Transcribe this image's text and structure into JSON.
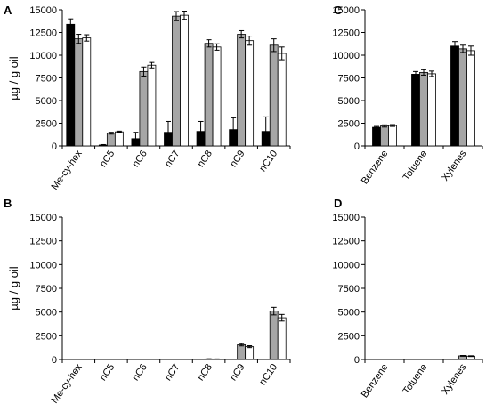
{
  "colors": {
    "black": "#000000",
    "gray": "#a6a6a6",
    "white": "#ffffff",
    "stroke": "#000000",
    "errorbar": "#000000",
    "axis": "#000000"
  },
  "chart_data": [
    {
      "panel": "A",
      "type": "bar",
      "ylabel": "µg / g oil",
      "ylim": [
        0,
        15000
      ],
      "yticks": [
        "0",
        "2500",
        "5000",
        "7500",
        "10000",
        "12500",
        "15000"
      ],
      "categories": [
        "Me-cy-hex",
        "nC5",
        "nC6",
        "nC7",
        "nC8",
        "nC9",
        "nC10"
      ],
      "series": [
        {
          "color": "black",
          "values": [
            13400,
            100,
            800,
            1500,
            1600,
            1800,
            1600
          ],
          "errors": [
            600,
            50,
            700,
            1200,
            1100,
            1300,
            1600
          ]
        },
        {
          "color": "gray",
          "values": [
            11800,
            1400,
            8200,
            14300,
            11300,
            12300,
            11100
          ],
          "errors": [
            500,
            100,
            500,
            500,
            400,
            400,
            700
          ]
        },
        {
          "color": "white",
          "values": [
            11900,
            1550,
            8900,
            14400,
            10900,
            11600,
            10200
          ],
          "errors": [
            350,
            80,
            300,
            450,
            350,
            500,
            700
          ]
        }
      ]
    },
    {
      "panel": "B",
      "type": "bar",
      "ylabel": "µg / g oil",
      "ylim": [
        0,
        15000
      ],
      "yticks": [
        "0",
        "2500",
        "5000",
        "7500",
        "10000",
        "12500",
        "15000"
      ],
      "categories": [
        "Me-cy-hex",
        "nC5",
        "nC6",
        "nC7",
        "nC8",
        "nC9",
        "nC10"
      ],
      "series": [
        {
          "color": "black",
          "values": [
            0,
            0,
            0,
            0,
            0,
            0,
            0
          ],
          "errors": [
            0,
            0,
            0,
            0,
            0,
            0,
            0
          ]
        },
        {
          "color": "gray",
          "values": [
            10,
            10,
            10,
            20,
            60,
            1550,
            5100
          ],
          "errors": [
            5,
            5,
            5,
            5,
            15,
            120,
            400
          ]
        },
        {
          "color": "white",
          "values": [
            10,
            10,
            10,
            20,
            50,
            1350,
            4400
          ],
          "errors": [
            5,
            5,
            5,
            5,
            10,
            100,
            350
          ]
        }
      ]
    },
    {
      "panel": "C",
      "type": "bar",
      "ylim": [
        0,
        15000
      ],
      "yticks": [
        "0",
        "2500",
        "5000",
        "7500",
        "10000",
        "12500",
        "15000"
      ],
      "categories": [
        "Benzene",
        "Toluene",
        "Xylenes"
      ],
      "series": [
        {
          "color": "black",
          "values": [
            2050,
            7900,
            11000
          ],
          "errors": [
            100,
            300,
            500
          ]
        },
        {
          "color": "gray",
          "values": [
            2200,
            8100,
            10700
          ],
          "errors": [
            120,
            300,
            400
          ]
        },
        {
          "color": "white",
          "values": [
            2250,
            7950,
            10500
          ],
          "errors": [
            100,
            300,
            500
          ]
        }
      ]
    },
    {
      "panel": "D",
      "type": "bar",
      "ylim": [
        0,
        15000
      ],
      "yticks": [
        "0",
        "2500",
        "5000",
        "7500",
        "10000",
        "12500",
        "15000"
      ],
      "categories": [
        "Benzene",
        "Toluene",
        "Xylenes"
      ],
      "series": [
        {
          "color": "black",
          "values": [
            0,
            0,
            0
          ],
          "errors": [
            0,
            0,
            0
          ]
        },
        {
          "color": "gray",
          "values": [
            5,
            10,
            380
          ],
          "errors": [
            3,
            5,
            40
          ]
        },
        {
          "color": "white",
          "values": [
            5,
            10,
            350
          ],
          "errors": [
            3,
            5,
            40
          ]
        }
      ]
    }
  ]
}
